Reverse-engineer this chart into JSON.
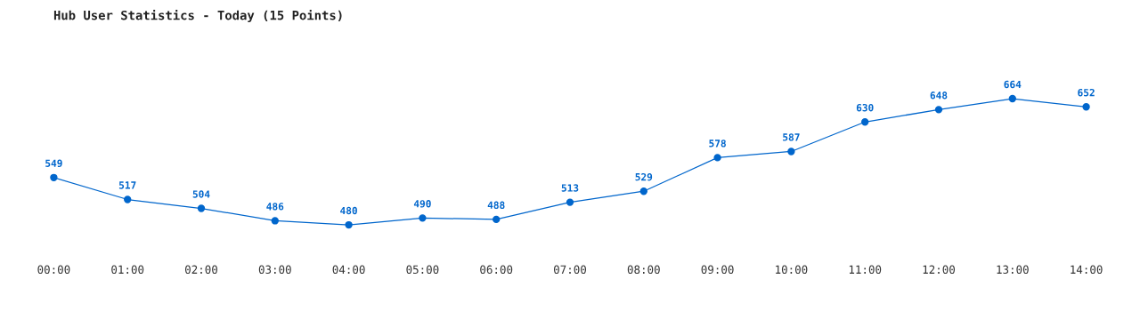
{
  "chart_data": {
    "type": "line",
    "title": "Hub User Statistics - Today (15 Points)",
    "categories": [
      "00:00",
      "01:00",
      "02:00",
      "03:00",
      "04:00",
      "05:00",
      "06:00",
      "07:00",
      "08:00",
      "09:00",
      "10:00",
      "11:00",
      "12:00",
      "13:00",
      "14:00"
    ],
    "values": [
      549,
      517,
      504,
      486,
      480,
      490,
      488,
      513,
      529,
      578,
      587,
      630,
      648,
      664,
      652
    ],
    "color": "#0066cc",
    "marker": "circle",
    "line_style": "solid",
    "data_labels": true,
    "grid": false,
    "tick_labels": "x"
  }
}
